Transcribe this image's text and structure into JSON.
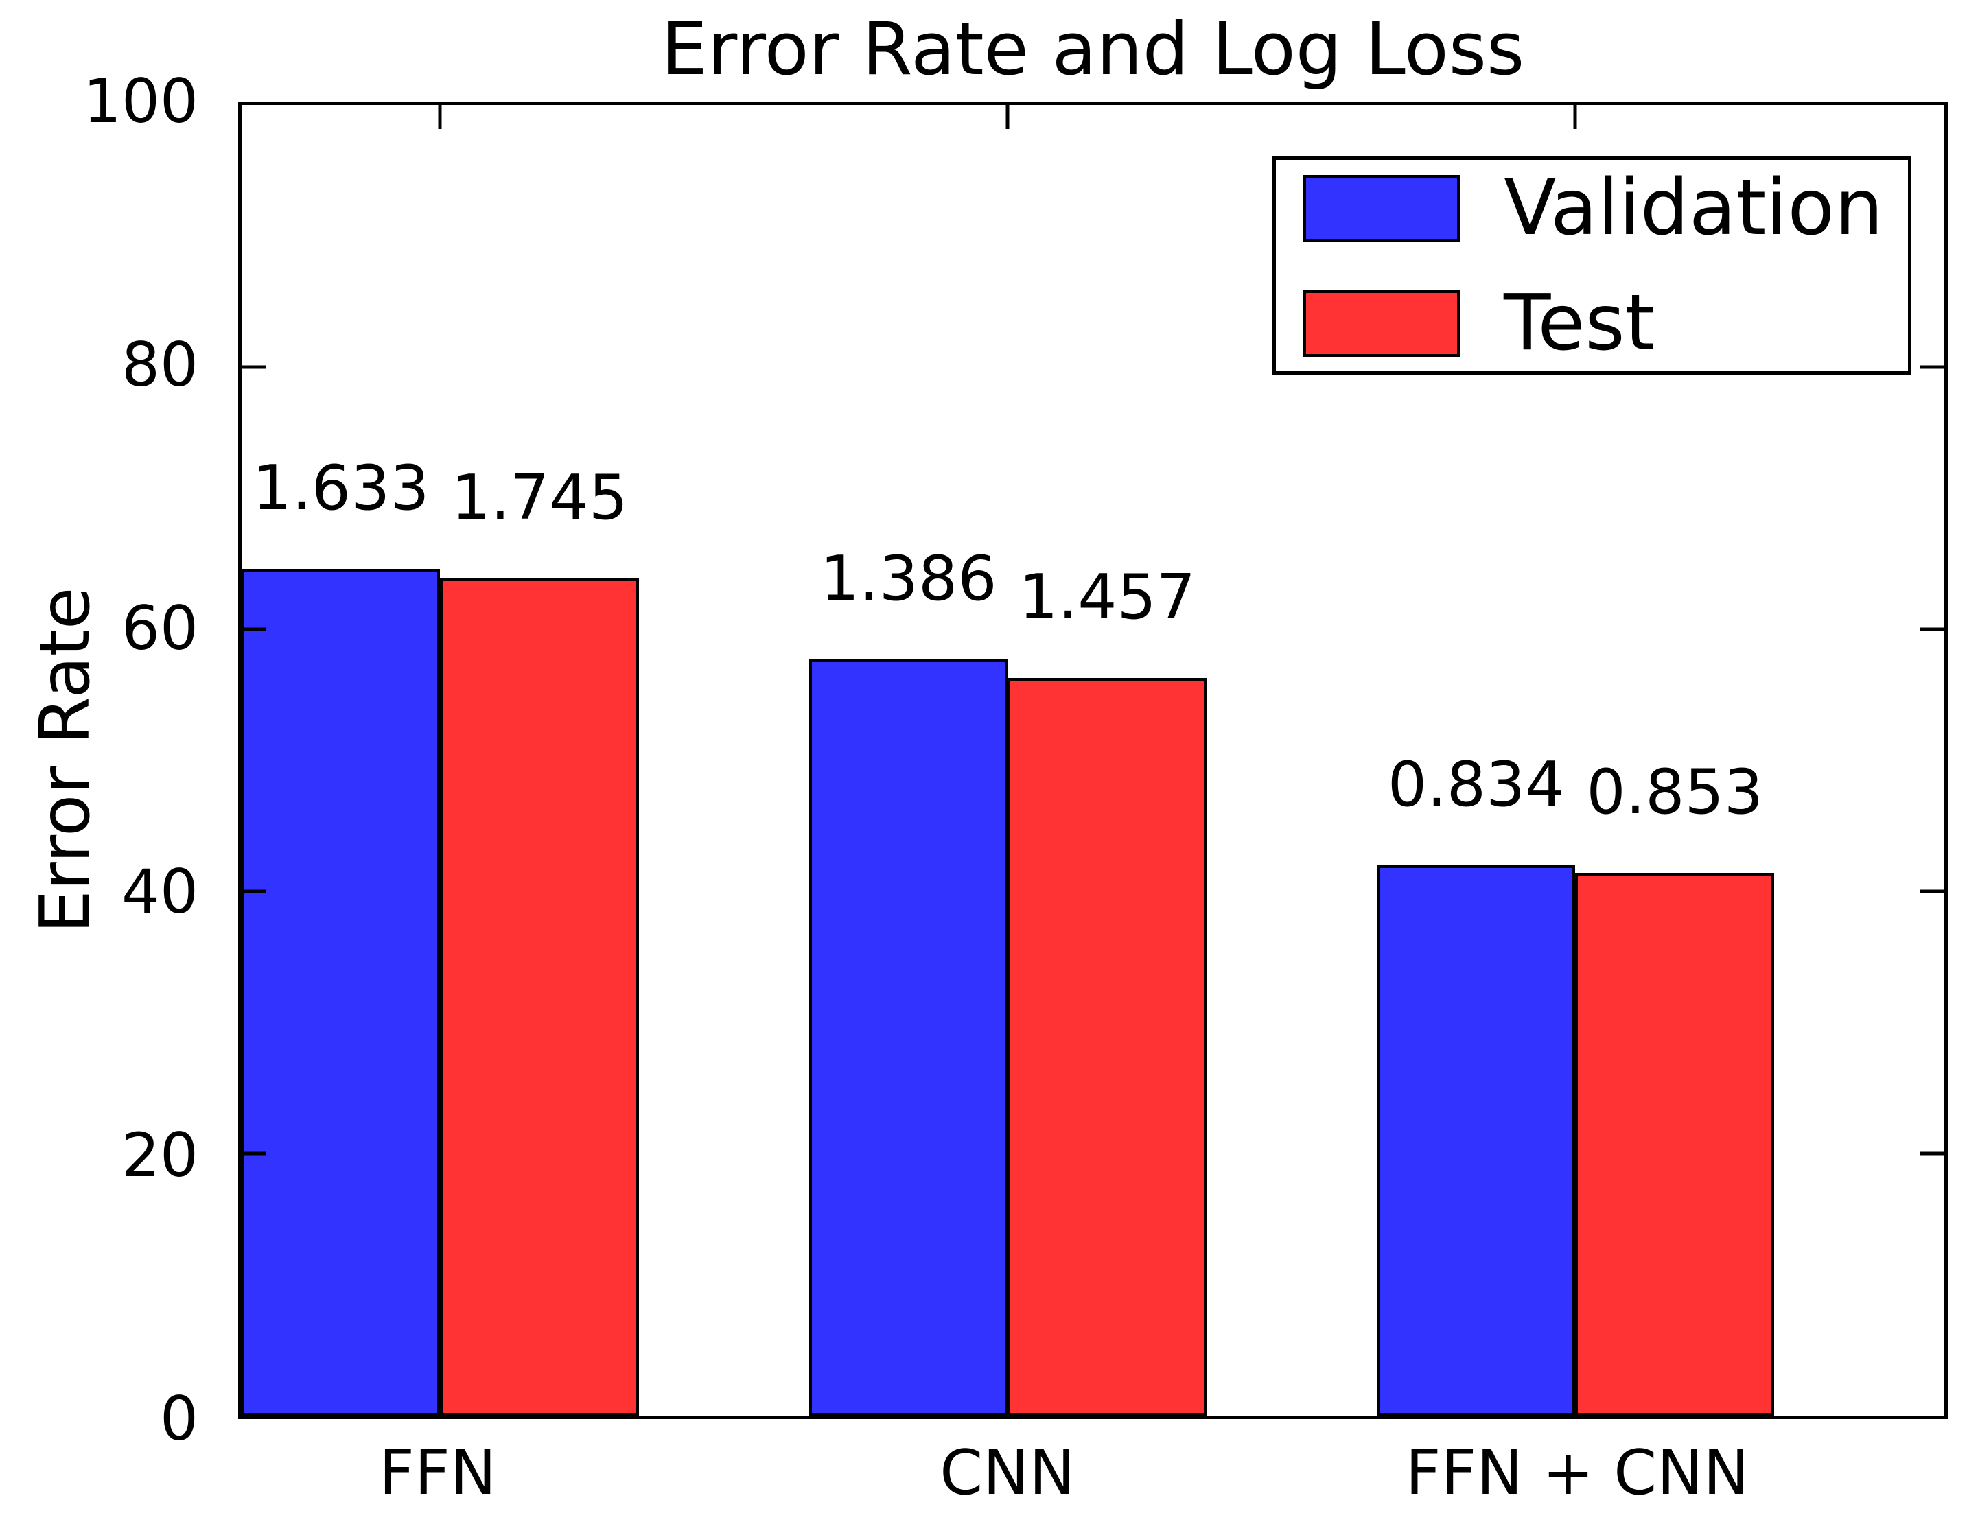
{
  "chart_data": {
    "type": "bar",
    "title": "Error Rate and Log Loss",
    "ylabel": "Error Rate",
    "xlabel": "",
    "categories": [
      "FFN",
      "CNN",
      "FFN + CNN"
    ],
    "series": [
      {
        "name": "Validation",
        "color": "#3333ff",
        "values": [
          64.6,
          57.7,
          42.0
        ],
        "bar_labels": [
          "1.633",
          "1.386",
          "0.834"
        ]
      },
      {
        "name": "Test",
        "color": "#ff3333",
        "values": [
          63.9,
          56.3,
          41.4
        ],
        "bar_labels": [
          "1.745",
          "1.457",
          "0.853"
        ]
      }
    ],
    "ylim": [
      0,
      100
    ],
    "yticks": [
      0,
      20,
      40,
      60,
      80,
      100
    ],
    "grid": false,
    "legend_position": "upper right",
    "bar_edge_color": "#000000"
  }
}
